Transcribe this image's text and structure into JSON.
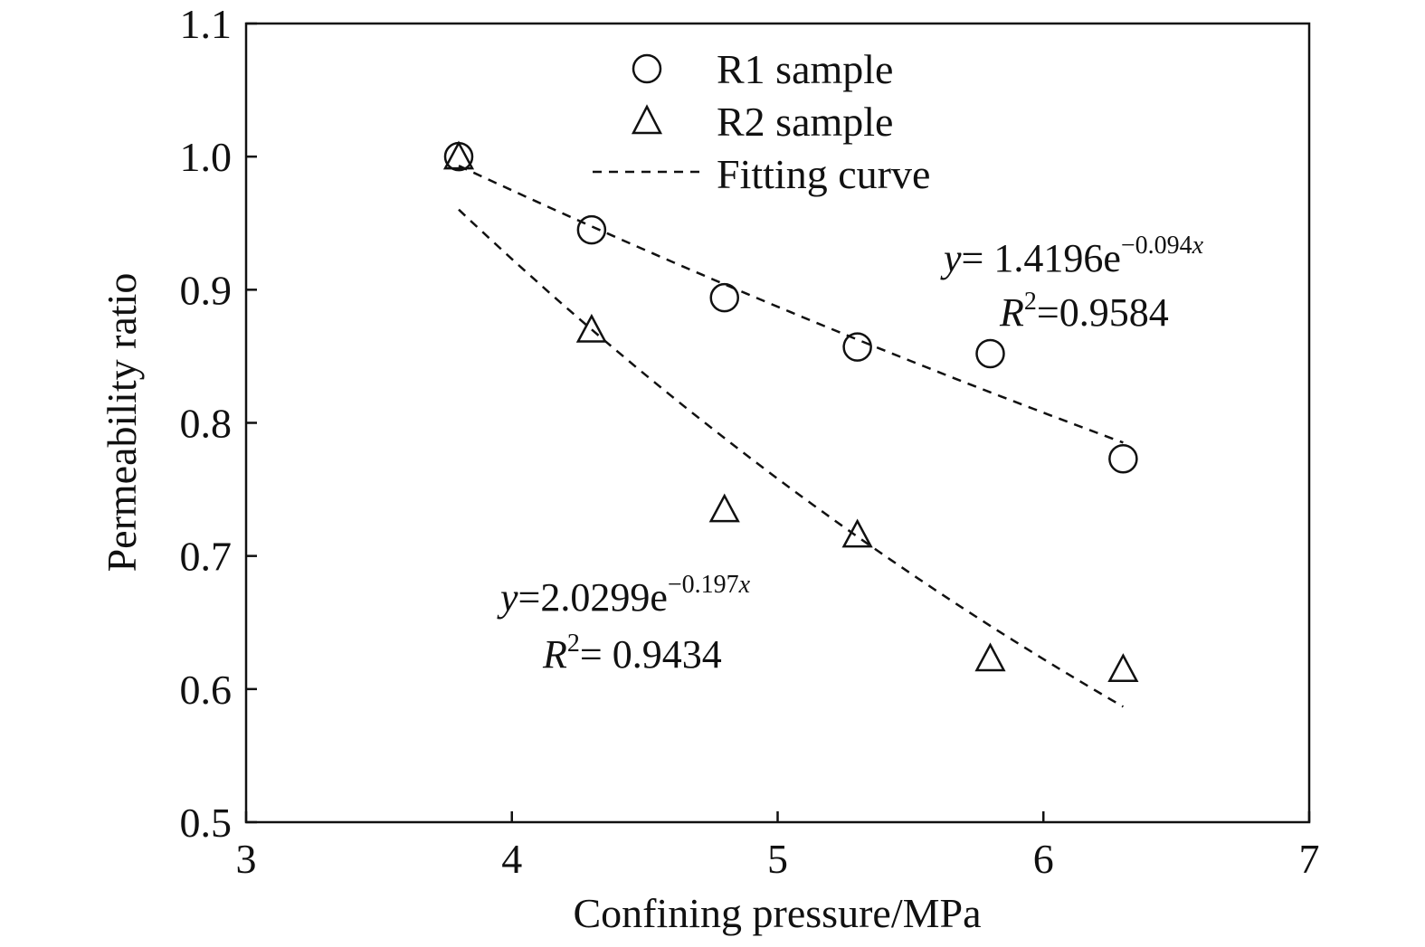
{
  "chart_data": {
    "type": "scatter",
    "title": "",
    "xlabel": "Confining pressure/MPa",
    "ylabel": "Permeability ratio",
    "xlim": [
      3,
      7
    ],
    "ylim": [
      0.5,
      1.1
    ],
    "xticks": [
      3,
      4,
      5,
      6,
      7
    ],
    "xtick_labels": [
      "3",
      "4",
      "5",
      "6",
      "7"
    ],
    "yticks": [
      0.5,
      0.6,
      0.7,
      0.8,
      0.9,
      1.0,
      1.1
    ],
    "ytick_labels": [
      "0.5",
      "0.6",
      "0.7",
      "0.8",
      "0.9",
      "1.0",
      "1.1"
    ],
    "grid": false,
    "legend": {
      "placement": "top-center",
      "entries": [
        {
          "label": "R1 sample",
          "marker": "circle"
        },
        {
          "label": "R2 sample",
          "marker": "triangle"
        },
        {
          "label": "Fitting curve",
          "marker": "dashed-line"
        }
      ]
    },
    "series": [
      {
        "name": "R1 sample",
        "marker": "circle",
        "x": [
          3.8,
          4.3,
          4.8,
          5.3,
          5.8,
          6.3
        ],
        "y": [
          1.0,
          0.945,
          0.894,
          0.857,
          0.852,
          0.773
        ],
        "fit": {
          "type": "exponential",
          "a": 1.4196,
          "b": -0.094,
          "x_range": [
            3.8,
            6.3
          ]
        }
      },
      {
        "name": "R2 sample",
        "marker": "triangle",
        "x": [
          3.8,
          4.3,
          4.8,
          5.3,
          5.8,
          6.3
        ],
        "y": [
          1.0,
          0.87,
          0.735,
          0.716,
          0.623,
          0.615
        ],
        "fit": {
          "type": "exponential",
          "a": 2.0299,
          "b": -0.197,
          "x_range": [
            3.8,
            6.3
          ]
        }
      }
    ],
    "annotations": [
      {
        "series": "R1 sample",
        "eq_y": "y",
        "eq_rhs": "= 1.4196e",
        "eq_exp": "−0.094",
        "eq_exp_var": "x",
        "r2_label": "R",
        "r2_sup": "2",
        "r2_value": "=0.9584"
      },
      {
        "series": "R2 sample",
        "eq_y": "y",
        "eq_rhs": "=2.0299e",
        "eq_exp": "−0.197",
        "eq_exp_var": "x",
        "r2_label": "R",
        "r2_sup": "2",
        "r2_value": "= 0.9434"
      }
    ]
  }
}
